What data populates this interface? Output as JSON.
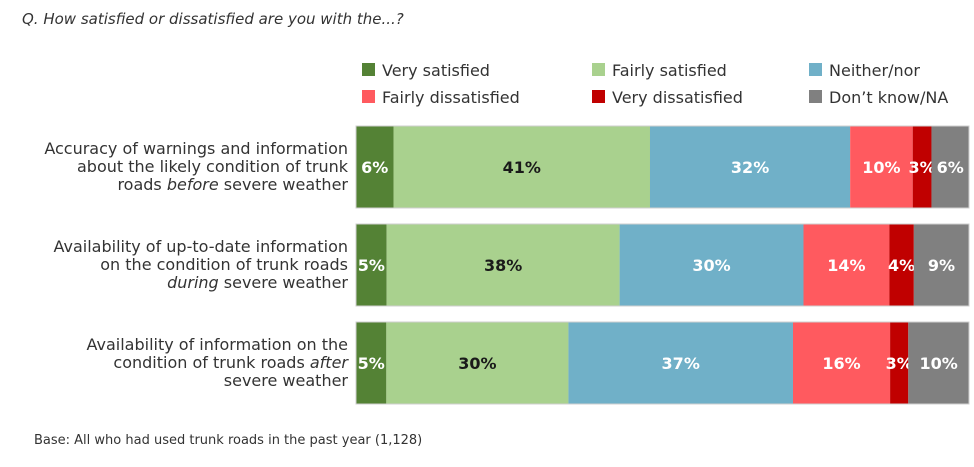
{
  "question": "Q.  How satisfied or dissatisfied are you with the...?",
  "base_note": "Base: All who had used trunk roads in the past year (1,128)",
  "chart_data": {
    "type": "bar",
    "orientation": "horizontal",
    "stacked": true,
    "percent": true,
    "legend_position": "top-right",
    "categories": [
      [
        "Accuracy of warnings and information",
        "about the likely condition of trunk",
        "roads |before| severe weather"
      ],
      [
        "Availability of up-to-date information",
        "on the condition of trunk roads",
        "|during| severe weather"
      ],
      [
        "Availability of information on the",
        "condition of trunk roads |after|",
        "severe weather"
      ]
    ],
    "series": [
      {
        "name": "Very satisfied",
        "color": "#548235",
        "label_color": "#ffffff",
        "values": [
          6,
          5,
          5
        ],
        "labels": [
          "6%",
          "5%",
          "5%"
        ]
      },
      {
        "name": "Fairly satisfied",
        "color": "#a9d18e",
        "label_color": "#1a1a1a",
        "values": [
          41,
          38,
          30
        ],
        "labels": [
          "41%",
          "38%",
          "30%"
        ]
      },
      {
        "name": "Neither/nor",
        "color": "#70b0c8",
        "label_color": "#ffffff",
        "values": [
          32,
          30,
          37
        ],
        "labels": [
          "32%",
          "30%",
          "37%"
        ]
      },
      {
        "name": "Fairly dissatisfied",
        "color": "#ff5a5f",
        "label_color": "#ffffff",
        "values": [
          10,
          14,
          16
        ],
        "labels": [
          "10%",
          "14%",
          "16%"
        ]
      },
      {
        "name": "Very dissatisfied",
        "color": "#c00000",
        "label_color": "#ffffff",
        "values": [
          3,
          4,
          3
        ],
        "labels": [
          "3%",
          "4%",
          "3%"
        ]
      },
      {
        "name": "Don’t know/NA",
        "color": "#808080",
        "label_color": "#ffffff",
        "values": [
          6,
          9,
          10
        ],
        "labels": [
          "6%",
          "9%",
          "10%"
        ]
      }
    ]
  }
}
